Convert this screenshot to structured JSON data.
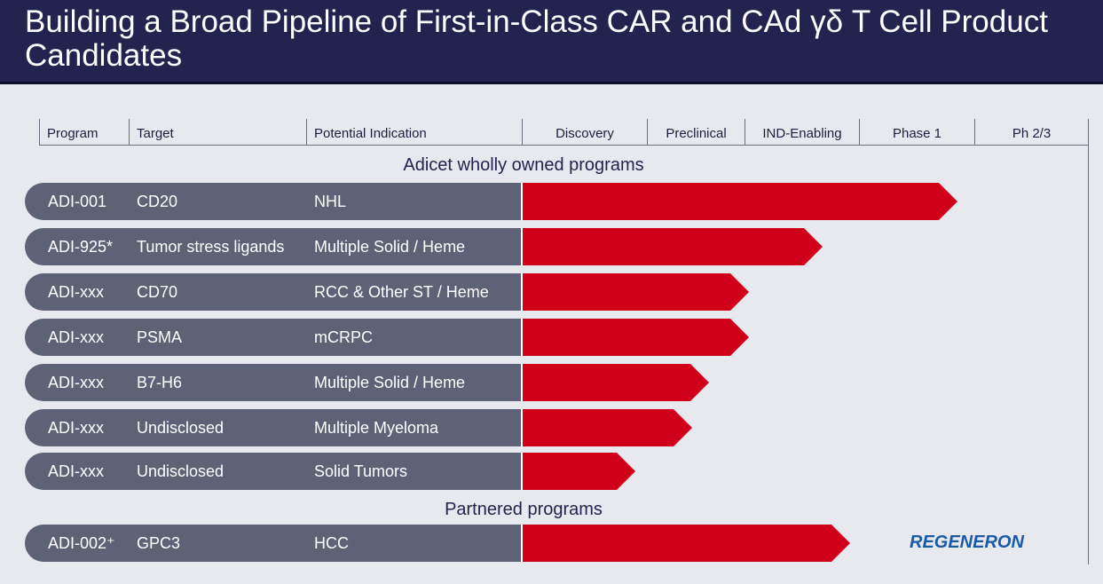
{
  "title": "Building a Broad Pipeline of First-in-Class CAR and CAd γδ T Cell Product Candidates",
  "columns": [
    "Program",
    "Target",
    "Potential Indication",
    "Discovery",
    "Preclinical",
    "IND-Enabling",
    "Phase 1",
    "Ph 2/3"
  ],
  "sections": {
    "owned": "Adicet wholly owned programs",
    "partnered": "Partnered programs"
  },
  "owned_programs": [
    {
      "program": "ADI-001",
      "target": "CD20",
      "indication": "NHL",
      "progress": 0.77
    },
    {
      "program": "ADI-925*",
      "target": "Tumor stress ligands",
      "indication": "Multiple Solid / Heme",
      "progress": 0.53
    },
    {
      "program": "ADI-xxx",
      "target": "CD70",
      "indication": "RCC & Other ST / Heme",
      "progress": 0.4
    },
    {
      "program": "ADI-xxx",
      "target": "PSMA",
      "indication": "mCRPC",
      "progress": 0.4
    },
    {
      "program": "ADI-xxx",
      "target": "B7-H6",
      "indication": "Multiple Solid / Heme",
      "progress": 0.33
    },
    {
      "program": "ADI-xxx",
      "target": "Undisclosed",
      "indication": "Multiple Myeloma",
      "progress": 0.3
    },
    {
      "program": "ADI-xxx",
      "target": "Undisclosed",
      "indication": "Solid Tumors",
      "progress": 0.2
    }
  ],
  "partnered_programs": [
    {
      "program": "ADI-002⁺",
      "target": "GPC3",
      "indication": "HCC",
      "progress": 0.58,
      "partner": "REGENERON"
    }
  ],
  "colors": {
    "header": "#232350",
    "pill": "#5e6277",
    "arrow": "#d0001a",
    "partner_logo": "#1a5ba8"
  }
}
